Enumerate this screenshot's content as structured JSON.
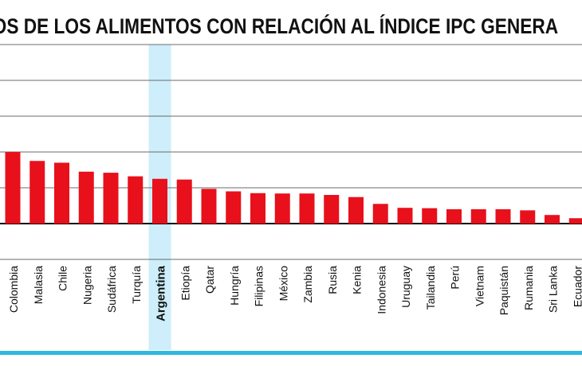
{
  "chart_data": {
    "type": "bar",
    "title": "CIOS DE LOS ALIMENTOS CON RELACIÓN AL ÍNDICE IPC GENERA",
    "categories": [
      "Colombia",
      "Malasia",
      "Chile",
      "Nugeria",
      "Sudáfrica",
      "Turquía",
      "Argentina",
      "Etiopía",
      "Qatar",
      "Hungría",
      "Filipinas",
      "México",
      "Zambia",
      "Rusia",
      "Kenia",
      "Indonesia",
      "Uruguay",
      "Tailandia",
      "Perú",
      "Vietnam",
      "Paquistán",
      "Rumania",
      "Sri Lanka",
      "Ecuador"
    ],
    "values": [
      2.0,
      1.75,
      1.7,
      1.45,
      1.42,
      1.32,
      1.25,
      1.23,
      0.97,
      0.9,
      0.85,
      0.84,
      0.84,
      0.8,
      0.74,
      0.55,
      0.44,
      0.43,
      0.4,
      0.4,
      0.4,
      0.37,
      0.24,
      0.15
    ],
    "ylim": [
      -1.0,
      5.0
    ],
    "highlight": "Argentina",
    "grid": true,
    "legend": "none",
    "colors": {
      "bar": "#e8101b",
      "highlight_band": "#cdeefa",
      "grid": "#6b6b6b",
      "zero_line": "#111111",
      "axis_rule": "#2fb8e0",
      "text": "#111111"
    }
  }
}
